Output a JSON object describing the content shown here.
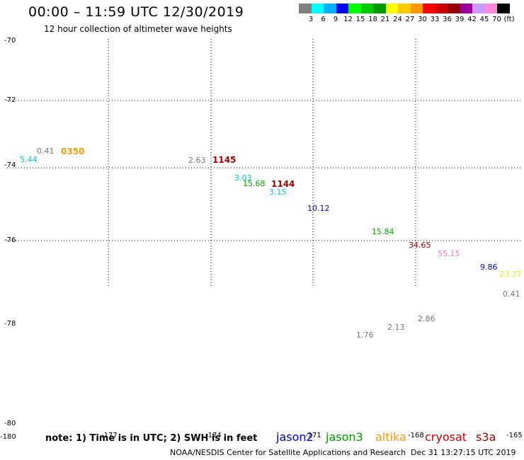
{
  "header": {
    "title": "00:00 – 11:59 UTC 12/30/2019",
    "subtitle": "12 hour collection of altimeter wave heights"
  },
  "colorbar": {
    "swatches": [
      "#808080",
      "#00ffff",
      "#00b0ff",
      "#0000ff",
      "#00ff00",
      "#00cc00",
      "#009900",
      "#ffff00",
      "#ffcc00",
      "#ff9900",
      "#ff0000",
      "#cc0000",
      "#990000",
      "#990099",
      "#cc99ff",
      "#ff88dd",
      "#000000"
    ],
    "labels": [
      "3",
      "6",
      "9",
      "12",
      "15",
      "18",
      "21",
      "24",
      "27",
      "30",
      "33",
      "36",
      "39",
      "42",
      "45",
      "70",
      "(ft)"
    ]
  },
  "axes": {
    "lat_labels": [
      "-70",
      "-72",
      "-74",
      "-76",
      "-78",
      "-80"
    ],
    "lon_labels": [
      "-180",
      "-177",
      "-174",
      "-171",
      "-168",
      "-165"
    ]
  },
  "observations": [
    {
      "text": "5.44",
      "color": "#00cccc"
    },
    {
      "text": "0.41",
      "color": "#777777"
    },
    {
      "text": "2.63",
      "color": "#777777"
    },
    {
      "text": "3.03",
      "color": "#00cccc"
    },
    {
      "text": "15.68",
      "color": "#00aa00"
    },
    {
      "text": "3.15",
      "color": "#00cccc"
    },
    {
      "text": "10.12",
      "color": "#0000cc"
    },
    {
      "text": "15.84",
      "color": "#00aa00"
    },
    {
      "text": "34.65",
      "color": "#990000"
    },
    {
      "text": "55.15",
      "color": "#ff77cc"
    },
    {
      "text": "9.86",
      "color": "#0000cc"
    },
    {
      "text": "23.37",
      "color": "#eeee00"
    },
    {
      "text": "0.41",
      "color": "#777777"
    },
    {
      "text": "2.86",
      "color": "#777777"
    },
    {
      "text": "2.13",
      "color": "#777777"
    },
    {
      "text": "1.76",
      "color": "#777777"
    }
  ],
  "pass_times": [
    {
      "text": "0350",
      "color": "#ff9900"
    },
    {
      "text": "1145",
      "color": "#990000"
    },
    {
      "text": "1144",
      "color": "#990000"
    }
  ],
  "footer": {
    "note": "note: 1) Time is in UTC; 2) SWH is in feet",
    "satellites": [
      {
        "name": "jason2",
        "color": "#0000cc"
      },
      {
        "name": "jason3",
        "color": "#009900"
      },
      {
        "name": "altika",
        "color": "#ff9900"
      },
      {
        "name": "cryosat",
        "color": "#cc0000"
      },
      {
        "name": "s3a",
        "color": "#990000"
      }
    ],
    "credit": "NOAA/NESDIS Center for Satellite Applications and Research",
    "timestamp": "Dec 31 13:27:15 UTC 2019"
  }
}
